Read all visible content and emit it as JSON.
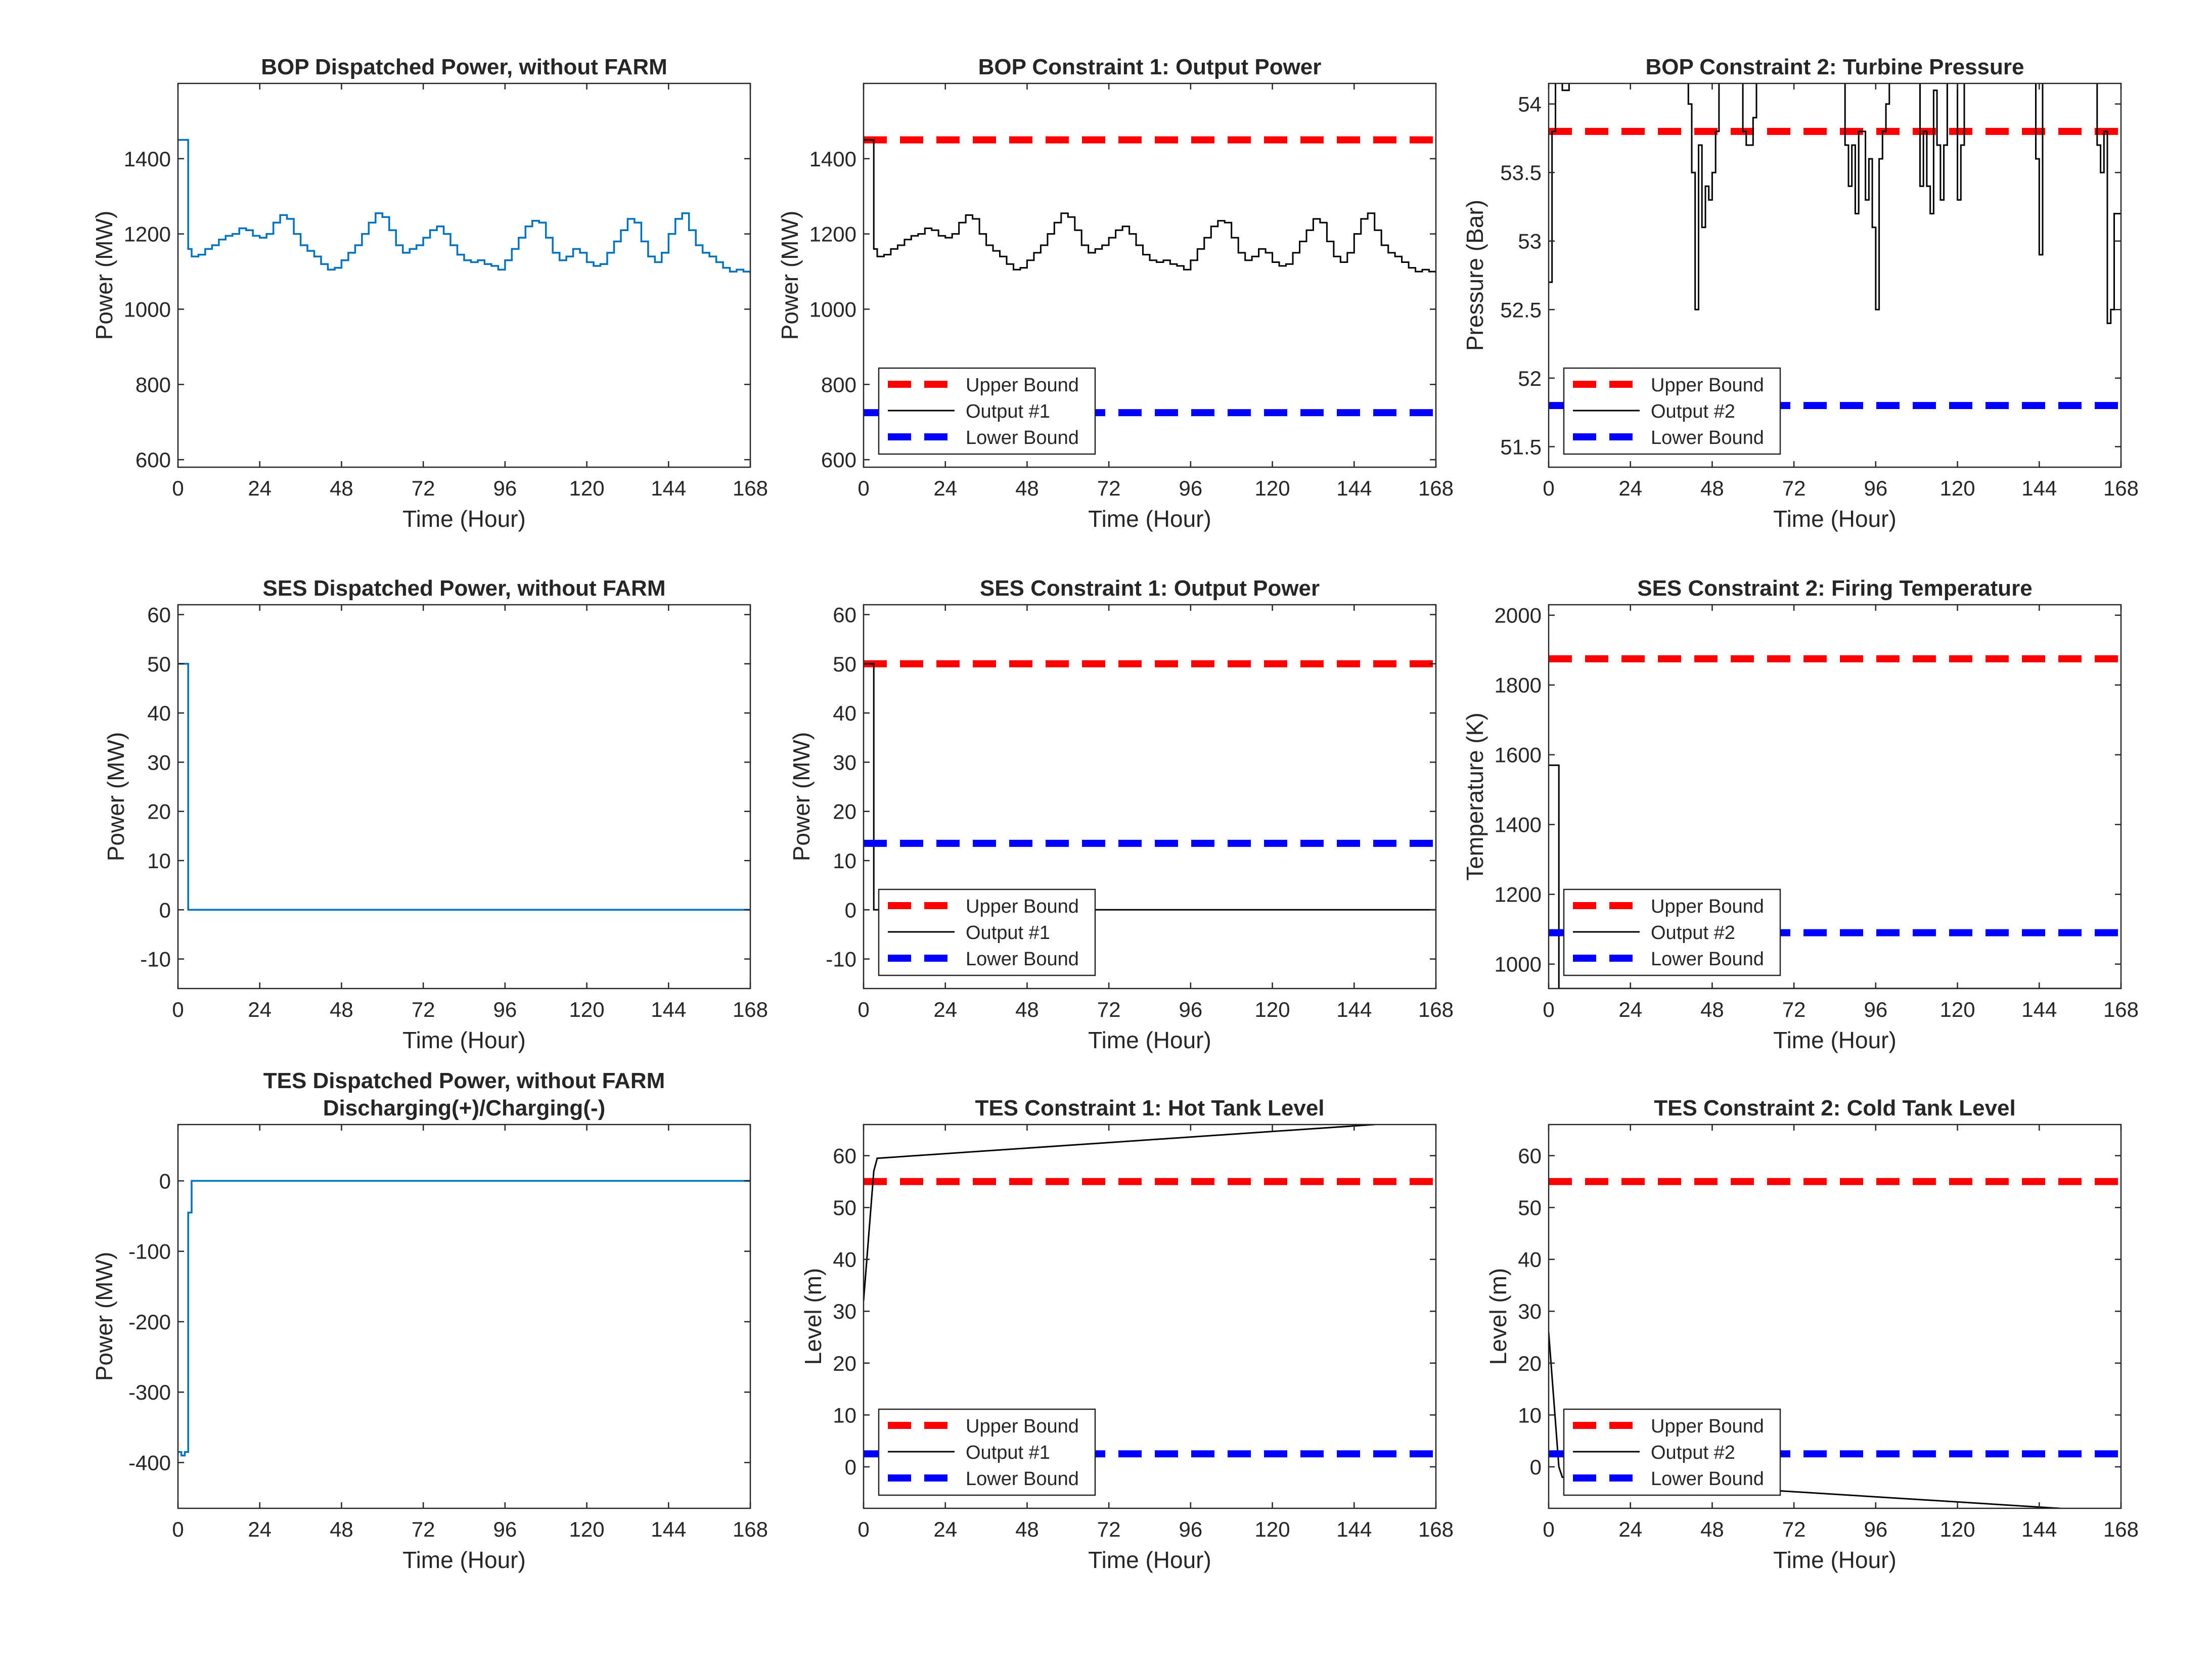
{
  "colors": {
    "upper_bound": "#ff0000",
    "lower_bound": "#0000ff",
    "output": "#000000",
    "dispatch": "#0072bd",
    "axes": "#262626"
  },
  "chart_data": [
    {
      "type": "line",
      "title": "BOP Dispatched Power, without FARM",
      "xlabel": "Time (Hour)",
      "ylabel": "Power (MW)",
      "xlim": [
        0,
        168
      ],
      "ylim": [
        580,
        1600
      ],
      "xticks": [
        0,
        24,
        48,
        72,
        96,
        120,
        144,
        168
      ],
      "yticks": [
        600,
        800,
        1000,
        1200,
        1400
      ],
      "ytick_labels": [
        "600",
        "800",
        "1000",
        "1200",
        "1400"
      ],
      "legend": null,
      "series": [
        {
          "role": "dispatch",
          "step": true,
          "x": [
            0,
            3,
            4,
            6,
            8,
            10,
            12,
            14,
            16,
            18,
            20,
            22,
            24,
            26,
            28,
            30,
            32,
            34,
            36,
            38,
            40,
            42,
            44,
            46,
            48,
            50,
            52,
            54,
            56,
            58,
            60,
            62,
            64,
            66,
            68,
            70,
            72,
            74,
            76,
            78,
            80,
            82,
            84,
            86,
            88,
            90,
            92,
            94,
            96,
            98,
            100,
            102,
            104,
            106,
            108,
            110,
            112,
            114,
            116,
            118,
            120,
            122,
            124,
            126,
            128,
            130,
            132,
            134,
            136,
            138,
            140,
            142,
            144,
            146,
            148,
            150,
            152,
            154,
            156,
            158,
            160,
            162,
            164,
            166,
            168
          ],
          "values": [
            1450,
            1160,
            1140,
            1145,
            1160,
            1170,
            1185,
            1195,
            1200,
            1215,
            1210,
            1195,
            1190,
            1200,
            1230,
            1250,
            1240,
            1200,
            1170,
            1155,
            1140,
            1120,
            1105,
            1110,
            1130,
            1150,
            1170,
            1200,
            1230,
            1255,
            1245,
            1210,
            1170,
            1150,
            1160,
            1170,
            1190,
            1210,
            1220,
            1200,
            1170,
            1145,
            1130,
            1125,
            1130,
            1120,
            1115,
            1105,
            1130,
            1160,
            1190,
            1220,
            1235,
            1230,
            1190,
            1150,
            1130,
            1140,
            1160,
            1150,
            1125,
            1115,
            1120,
            1150,
            1180,
            1210,
            1240,
            1230,
            1180,
            1140,
            1125,
            1150,
            1200,
            1240,
            1255,
            1210,
            1170,
            1150,
            1140,
            1125,
            1110,
            1100,
            1105,
            1100,
            1095
          ]
        }
      ]
    },
    {
      "type": "line",
      "title": "BOP Constraint 1: Output Power",
      "xlabel": "Time (Hour)",
      "ylabel": "Power (MW)",
      "xlim": [
        0,
        168
      ],
      "ylim": [
        580,
        1600
      ],
      "xticks": [
        0,
        24,
        48,
        72,
        96,
        120,
        144,
        168
      ],
      "yticks": [
        600,
        800,
        1000,
        1200,
        1400
      ],
      "ytick_labels": [
        "600",
        "800",
        "1000",
        "1200",
        "1400"
      ],
      "legend": [
        "Upper Bound",
        "Output #1",
        "Lower Bound"
      ],
      "legend_location": "bottom-left",
      "series": [
        {
          "role": "upper",
          "name": "Upper Bound",
          "x": [
            0,
            168
          ],
          "values": [
            1450,
            1450
          ]
        },
        {
          "role": "output",
          "name": "Output #1",
          "step": true,
          "x": [
            0,
            3,
            4,
            6,
            8,
            10,
            12,
            14,
            16,
            18,
            20,
            22,
            24,
            26,
            28,
            30,
            32,
            34,
            36,
            38,
            40,
            42,
            44,
            46,
            48,
            50,
            52,
            54,
            56,
            58,
            60,
            62,
            64,
            66,
            68,
            70,
            72,
            74,
            76,
            78,
            80,
            82,
            84,
            86,
            88,
            90,
            92,
            94,
            96,
            98,
            100,
            102,
            104,
            106,
            108,
            110,
            112,
            114,
            116,
            118,
            120,
            122,
            124,
            126,
            128,
            130,
            132,
            134,
            136,
            138,
            140,
            142,
            144,
            146,
            148,
            150,
            152,
            154,
            156,
            158,
            160,
            162,
            164,
            166,
            168
          ],
          "values": [
            1450,
            1160,
            1140,
            1145,
            1160,
            1170,
            1185,
            1195,
            1200,
            1215,
            1210,
            1195,
            1190,
            1200,
            1230,
            1250,
            1240,
            1200,
            1170,
            1155,
            1140,
            1120,
            1105,
            1110,
            1130,
            1150,
            1170,
            1200,
            1230,
            1255,
            1245,
            1210,
            1170,
            1150,
            1160,
            1170,
            1190,
            1210,
            1220,
            1200,
            1170,
            1145,
            1130,
            1125,
            1130,
            1120,
            1115,
            1105,
            1130,
            1160,
            1190,
            1220,
            1235,
            1230,
            1190,
            1150,
            1130,
            1140,
            1160,
            1150,
            1125,
            1115,
            1120,
            1150,
            1180,
            1210,
            1240,
            1230,
            1180,
            1140,
            1125,
            1150,
            1200,
            1240,
            1255,
            1210,
            1170,
            1150,
            1140,
            1125,
            1110,
            1100,
            1105,
            1100,
            1095
          ]
        },
        {
          "role": "lower",
          "name": "Lower Bound",
          "x": [
            0,
            168
          ],
          "values": [
            725,
            725
          ]
        }
      ]
    },
    {
      "type": "line",
      "title": "BOP Constraint 2: Turbine Pressure",
      "xlabel": "Time (Hour)",
      "ylabel": "Pressure (Bar)",
      "xlim": [
        0,
        168
      ],
      "ylim": [
        51.35,
        54.15
      ],
      "xticks": [
        0,
        24,
        48,
        72,
        96,
        120,
        144,
        168
      ],
      "yticks": [
        51.5,
        52,
        52.5,
        53,
        53.5,
        54
      ],
      "ytick_labels": [
        "51.5",
        "52",
        "52.5",
        "53",
        "53.5",
        "54"
      ],
      "legend": [
        "Upper Bound",
        "Output #2",
        "Lower Bound"
      ],
      "legend_location": "bottom-left",
      "series": [
        {
          "role": "upper",
          "name": "Upper Bound",
          "x": [
            0,
            168
          ],
          "values": [
            53.8,
            53.8
          ]
        },
        {
          "role": "output",
          "name": "Output #2",
          "step": true,
          "x": [
            0,
            1,
            2,
            3,
            4,
            5,
            6,
            40,
            41,
            42,
            43,
            44,
            45,
            46,
            47,
            48,
            49,
            50,
            56,
            57,
            58,
            59,
            60,
            61,
            62,
            63,
            64,
            86,
            87,
            88,
            89,
            90,
            91,
            92,
            93,
            94,
            95,
            96,
            97,
            98,
            99,
            100,
            101,
            108,
            109,
            110,
            111,
            112,
            113,
            114,
            115,
            116,
            117,
            118,
            119,
            120,
            121,
            122,
            123,
            124,
            142,
            143,
            144,
            145,
            160,
            161,
            162,
            163,
            164,
            165,
            166,
            167,
            168
          ],
          "values": [
            52.7,
            53.8,
            54.2,
            54.2,
            54.1,
            54.1,
            54.2,
            54.2,
            54.0,
            53.5,
            52.5,
            53.7,
            53.1,
            53.4,
            53.3,
            53.5,
            53.8,
            54.2,
            54.2,
            53.8,
            53.7,
            53.7,
            53.9,
            54.2,
            54.2,
            54.2,
            54.2,
            54.2,
            53.7,
            53.4,
            53.7,
            53.2,
            53.8,
            53.8,
            53.3,
            53.6,
            53.1,
            52.5,
            53.6,
            53.8,
            54.0,
            54.2,
            54.2,
            54.2,
            53.4,
            53.8,
            53.4,
            53.2,
            54.1,
            53.7,
            53.3,
            53.7,
            54.2,
            54.2,
            54.2,
            53.3,
            53.7,
            54.2,
            54.2,
            54.2,
            54.2,
            53.6,
            52.9,
            54.2,
            54.2,
            53.7,
            53.5,
            53.8,
            52.4,
            52.5,
            53.2,
            53.2,
            53.2
          ]
        },
        {
          "role": "lower",
          "name": "Lower Bound",
          "x": [
            0,
            168
          ],
          "values": [
            51.8,
            51.8
          ]
        }
      ]
    },
    {
      "type": "line",
      "title": "SES Dispatched Power, without FARM",
      "xlabel": "Time (Hour)",
      "ylabel": "Power (MW)",
      "xlim": [
        0,
        168
      ],
      "ylim": [
        -16,
        62
      ],
      "xticks": [
        0,
        24,
        48,
        72,
        96,
        120,
        144,
        168
      ],
      "yticks": [
        -10,
        0,
        10,
        20,
        30,
        40,
        50,
        60
      ],
      "ytick_labels": [
        "-10",
        "0",
        "10",
        "20",
        "30",
        "40",
        "50",
        "60"
      ],
      "legend": null,
      "series": [
        {
          "role": "dispatch",
          "step": true,
          "x": [
            0,
            3,
            168
          ],
          "values": [
            50,
            0,
            0
          ]
        }
      ]
    },
    {
      "type": "line",
      "title": "SES Constraint 1: Output Power",
      "xlabel": "Time (Hour)",
      "ylabel": "Power (MW)",
      "xlim": [
        0,
        168
      ],
      "ylim": [
        -16,
        62
      ],
      "xticks": [
        0,
        24,
        48,
        72,
        96,
        120,
        144,
        168
      ],
      "yticks": [
        -10,
        0,
        10,
        20,
        30,
        40,
        50,
        60
      ],
      "ytick_labels": [
        "-10",
        "0",
        "10",
        "20",
        "30",
        "40",
        "50",
        "60"
      ],
      "legend": [
        "Upper Bound",
        "Output #1",
        "Lower Bound"
      ],
      "legend_location": "bottom-left",
      "series": [
        {
          "role": "upper",
          "name": "Upper Bound",
          "x": [
            0,
            168
          ],
          "values": [
            50,
            50
          ]
        },
        {
          "role": "output",
          "name": "Output #1",
          "step": true,
          "x": [
            0,
            3,
            168
          ],
          "values": [
            50,
            0,
            0
          ]
        },
        {
          "role": "lower",
          "name": "Lower Bound",
          "x": [
            0,
            168
          ],
          "values": [
            13.5,
            13.5
          ]
        }
      ]
    },
    {
      "type": "line",
      "title": "SES Constraint 2: Firing Temperature",
      "xlabel": "Time (Hour)",
      "ylabel": "Temperature (K)",
      "xlim": [
        0,
        168
      ],
      "ylim": [
        930,
        2030
      ],
      "xticks": [
        0,
        24,
        48,
        72,
        96,
        120,
        144,
        168
      ],
      "yticks": [
        1000,
        1200,
        1400,
        1600,
        1800,
        2000
      ],
      "ytick_labels": [
        "1000",
        "1200",
        "1400",
        "1600",
        "1800",
        "2000"
      ],
      "legend": [
        "Upper Bound",
        "Output #2",
        "Lower Bound"
      ],
      "legend_location": "bottom-left",
      "series": [
        {
          "role": "upper",
          "name": "Upper Bound",
          "x": [
            0,
            168
          ],
          "values": [
            1875,
            1875
          ]
        },
        {
          "role": "output",
          "name": "Output #2",
          "step": true,
          "x": [
            0,
            3,
            3.3
          ],
          "values": [
            1570,
            930,
            930
          ]
        },
        {
          "role": "lower",
          "name": "Lower Bound",
          "x": [
            0,
            168
          ],
          "values": [
            1090,
            1090
          ]
        }
      ]
    },
    {
      "type": "line",
      "title": "TES Dispatched Power, without FARM",
      "subtitle": "Discharging(+)/Charging(-)",
      "xlabel": "Time (Hour)",
      "ylabel": "Power (MW)",
      "xlim": [
        0,
        168
      ],
      "ylim": [
        -465,
        80
      ],
      "xticks": [
        0,
        24,
        48,
        72,
        96,
        120,
        144,
        168
      ],
      "yticks": [
        -400,
        -300,
        -200,
        -100,
        0
      ],
      "ytick_labels": [
        "-400",
        "-300",
        "-200",
        "-100",
        "0"
      ],
      "legend": null,
      "series": [
        {
          "role": "dispatch",
          "step": true,
          "x": [
            0,
            1,
            2,
            3,
            4,
            168
          ],
          "values": [
            -385,
            -390,
            -385,
            -45,
            0,
            0
          ]
        }
      ]
    },
    {
      "type": "line",
      "title": "TES Constraint 1: Hot Tank Level",
      "xlabel": "Time (Hour)",
      "ylabel": "Level (m)",
      "xlim": [
        0,
        168
      ],
      "ylim": [
        -8,
        66
      ],
      "xticks": [
        0,
        24,
        48,
        72,
        96,
        120,
        144,
        168
      ],
      "yticks": [
        0,
        10,
        20,
        30,
        40,
        50,
        60
      ],
      "ytick_labels": [
        "0",
        "10",
        "20",
        "30",
        "40",
        "50",
        "60"
      ],
      "legend": [
        "Upper Bound",
        "Output #1",
        "Lower Bound"
      ],
      "legend_location": "bottom-left",
      "series": [
        {
          "role": "upper",
          "name": "Upper Bound",
          "x": [
            0,
            168
          ],
          "values": [
            55,
            55
          ]
        },
        {
          "role": "output",
          "name": "Output #1",
          "x": [
            0,
            3,
            4,
            150
          ],
          "values": [
            32,
            57,
            59.5,
            66
          ]
        },
        {
          "role": "lower",
          "name": "Lower Bound",
          "x": [
            0,
            168
          ],
          "values": [
            2.5,
            2.5
          ]
        }
      ]
    },
    {
      "type": "line",
      "title": "TES Constraint 2: Cold Tank Level",
      "xlabel": "Time (Hour)",
      "ylabel": "Level (m)",
      "xlim": [
        0,
        168
      ],
      "ylim": [
        -8,
        66
      ],
      "xticks": [
        0,
        24,
        48,
        72,
        96,
        120,
        144,
        168
      ],
      "yticks": [
        0,
        10,
        20,
        30,
        40,
        50,
        60
      ],
      "ytick_labels": [
        "0",
        "10",
        "20",
        "30",
        "40",
        "50",
        "60"
      ],
      "legend": [
        "Upper Bound",
        "Output #2",
        "Lower Bound"
      ],
      "legend_location": "bottom-left",
      "series": [
        {
          "role": "upper",
          "name": "Upper Bound",
          "x": [
            0,
            168
          ],
          "values": [
            55,
            55
          ]
        },
        {
          "role": "output",
          "name": "Output #2",
          "x": [
            0,
            3,
            4,
            150
          ],
          "values": [
            26,
            0,
            -2,
            -8
          ]
        },
        {
          "role": "lower",
          "name": "Lower Bound",
          "x": [
            0,
            168
          ],
          "values": [
            2.5,
            2.5
          ]
        }
      ]
    }
  ]
}
